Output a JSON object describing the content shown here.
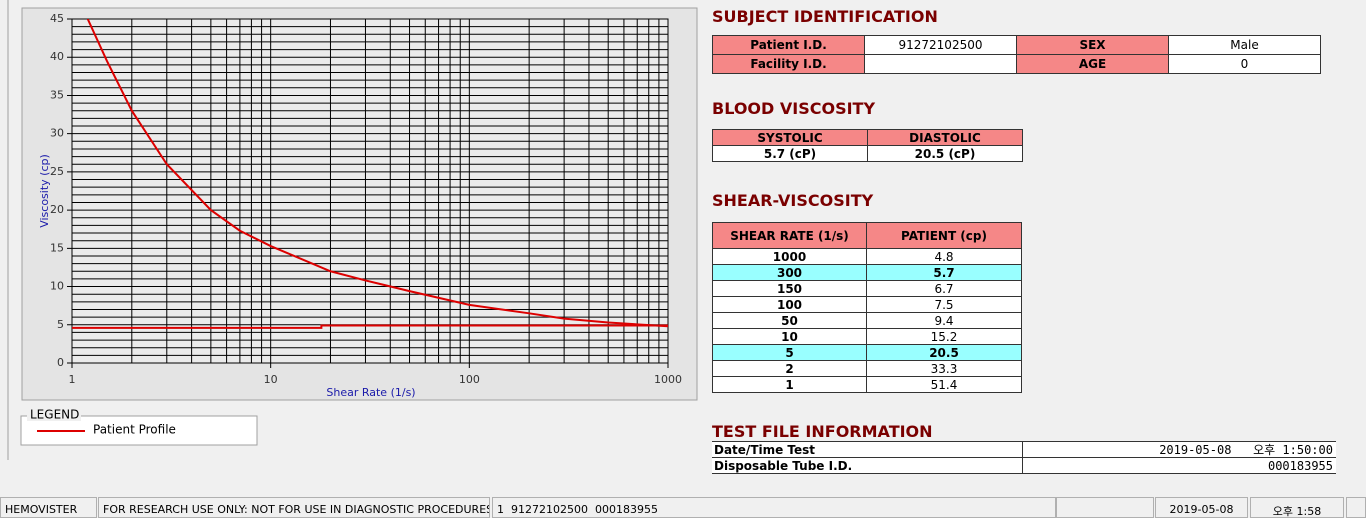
{
  "chart_data": {
    "type": "line",
    "x_label": "Shear Rate (1/s)",
    "y_label": "Viscosity (cp)",
    "xlim": [
      1,
      1000
    ],
    "ylim": [
      0,
      45
    ],
    "log_x": true,
    "grid": true,
    "xticks": [
      1,
      10,
      100,
      1000
    ],
    "yticks": [
      0,
      5,
      10,
      15,
      20,
      25,
      30,
      35,
      40,
      45
    ],
    "x_minor_ticks": [
      2,
      3,
      4,
      5,
      6,
      7,
      8,
      9,
      20,
      30,
      40,
      50,
      60,
      70,
      80,
      90,
      200,
      300,
      400,
      500,
      600,
      700,
      800,
      900
    ],
    "y_minor_ticks": [
      1,
      2,
      3,
      4,
      6,
      7,
      8,
      9,
      11,
      12,
      13,
      14,
      16,
      17,
      18,
      19,
      21,
      22,
      23,
      24,
      26,
      27,
      28,
      29,
      31,
      32,
      33,
      34,
      36,
      37,
      38,
      39,
      41,
      42,
      43,
      44
    ],
    "legend_title": "LEGEND",
    "series": [
      {
        "name": "Patient Profile",
        "color": "#dd0000",
        "x": [
          1.2,
          1.5,
          2,
          3,
          5,
          7,
          10,
          20,
          30,
          50,
          100,
          200,
          300,
          500,
          1000
        ],
        "values": [
          45,
          39.5,
          33,
          26,
          20,
          17.3,
          15.3,
          12,
          10.8,
          9.4,
          7.6,
          6.5,
          5.8,
          5.3,
          4.8
        ]
      },
      {
        "color": "#dd0000",
        "x": [
          1,
          18,
          18,
          1000
        ],
        "values": [
          4.6,
          4.6,
          4.9,
          4.9
        ]
      }
    ]
  },
  "subject": {
    "title": "SUBJECT IDENTIFICATION",
    "rows": [
      [
        "Patient I.D.",
        "91272102500",
        "SEX",
        "Male"
      ],
      [
        "Facility I.D.",
        null,
        "AGE",
        0
      ]
    ]
  },
  "blood": {
    "title": "BLOOD VISCOSITY",
    "headers": [
      "SYSTOLIC",
      "DIASTOLIC"
    ],
    "values": [
      "5.7 (cP)",
      "20.5 (cP)"
    ]
  },
  "shear": {
    "title": "SHEAR-VISCOSITY",
    "headers": [
      "SHEAR RATE (1/s)",
      "PATIENT (cp)"
    ],
    "rows": [
      {
        "rate": 1000,
        "patient": 4.8,
        "highlight": false
      },
      {
        "rate": 300,
        "patient": 5.7,
        "highlight": true
      },
      {
        "rate": 150,
        "patient": 6.7,
        "highlight": false
      },
      {
        "rate": 100,
        "patient": 7.5,
        "highlight": false
      },
      {
        "rate": 50,
        "patient": 9.4,
        "highlight": false
      },
      {
        "rate": 10,
        "patient": 15.2,
        "highlight": false
      },
      {
        "rate": 5,
        "patient": 20.5,
        "highlight": true
      },
      {
        "rate": 2,
        "patient": 33.3,
        "highlight": false
      },
      {
        "rate": 1,
        "patient": 51.4,
        "highlight": false
      }
    ]
  },
  "test_file": {
    "title": "TEST FILE INFORMATION",
    "rows": [
      [
        "Date/Time Test",
        "2019-05-08   오후 1:50:00"
      ],
      [
        "Disposable Tube I.D.",
        "000183955"
      ]
    ]
  },
  "status_bar": [
    "HEMOVISTER",
    "FOR RESEARCH USE ONLY: NOT FOR USE IN DIAGNOSTIC PROCEDURES",
    "1  91272102500  000183955",
    "2019-05-08",
    "오후 1:58"
  ]
}
